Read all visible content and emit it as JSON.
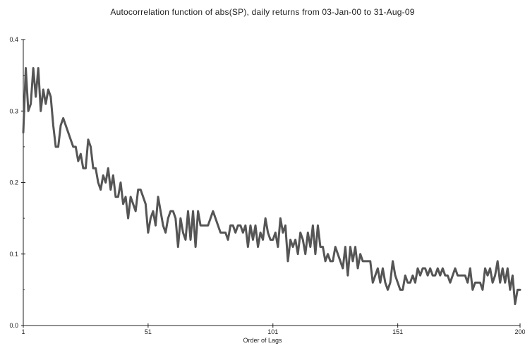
{
  "chart_data": {
    "type": "line",
    "title": "Autocorrelation function of abs(SP), daily returns from 03-Jan-00 to 31-Aug-09",
    "xlabel": "Order of Lags",
    "ylabel": "",
    "xlim": [
      1,
      200
    ],
    "ylim": [
      0,
      0.4
    ],
    "x_ticks": [
      "1",
      "51",
      "101",
      "151",
      "200"
    ],
    "y_ticks": [
      "0.0",
      "0.1",
      "0.2",
      "0.3",
      "0.4"
    ],
    "grid": false,
    "legend": "none",
    "series": [
      {
        "color": "#555555",
        "values": [
          0.27,
          0.36,
          0.3,
          0.31,
          0.36,
          0.32,
          0.36,
          0.3,
          0.33,
          0.31,
          0.33,
          0.32,
          0.28,
          0.25,
          0.25,
          0.28,
          0.29,
          0.28,
          0.27,
          0.26,
          0.25,
          0.25,
          0.23,
          0.24,
          0.22,
          0.22,
          0.26,
          0.25,
          0.22,
          0.22,
          0.2,
          0.19,
          0.21,
          0.2,
          0.22,
          0.19,
          0.21,
          0.18,
          0.18,
          0.2,
          0.17,
          0.18,
          0.15,
          0.18,
          0.17,
          0.16,
          0.19,
          0.19,
          0.18,
          0.17,
          0.13,
          0.15,
          0.16,
          0.14,
          0.18,
          0.16,
          0.14,
          0.13,
          0.15,
          0.16,
          0.16,
          0.15,
          0.11,
          0.15,
          0.13,
          0.12,
          0.16,
          0.12,
          0.16,
          0.11,
          0.16,
          0.14,
          0.14,
          0.14,
          0.14,
          0.15,
          0.16,
          0.15,
          0.14,
          0.13,
          0.13,
          0.13,
          0.12,
          0.14,
          0.14,
          0.13,
          0.14,
          0.14,
          0.13,
          0.14,
          0.11,
          0.14,
          0.12,
          0.14,
          0.11,
          0.13,
          0.12,
          0.15,
          0.13,
          0.12,
          0.12,
          0.13,
          0.11,
          0.15,
          0.13,
          0.14,
          0.09,
          0.12,
          0.11,
          0.12,
          0.1,
          0.13,
          0.12,
          0.1,
          0.13,
          0.11,
          0.14,
          0.1,
          0.14,
          0.11,
          0.11,
          0.09,
          0.1,
          0.09,
          0.09,
          0.11,
          0.1,
          0.09,
          0.08,
          0.11,
          0.07,
          0.11,
          0.09,
          0.11,
          0.08,
          0.1,
          0.09,
          0.09,
          0.09,
          0.09,
          0.06,
          0.07,
          0.08,
          0.06,
          0.08,
          0.06,
          0.05,
          0.06,
          0.09,
          0.07,
          0.06,
          0.05,
          0.05,
          0.07,
          0.06,
          0.06,
          0.07,
          0.06,
          0.08,
          0.07,
          0.08,
          0.08,
          0.07,
          0.08,
          0.07,
          0.07,
          0.08,
          0.07,
          0.08,
          0.07,
          0.07,
          0.06,
          0.07,
          0.08,
          0.07,
          0.07,
          0.07,
          0.07,
          0.06,
          0.08,
          0.05,
          0.06,
          0.06,
          0.06,
          0.05,
          0.08,
          0.07,
          0.08,
          0.06,
          0.07,
          0.09,
          0.06,
          0.08,
          0.06,
          0.08,
          0.05,
          0.07,
          0.03,
          0.05,
          0.05
        ]
      }
    ]
  }
}
